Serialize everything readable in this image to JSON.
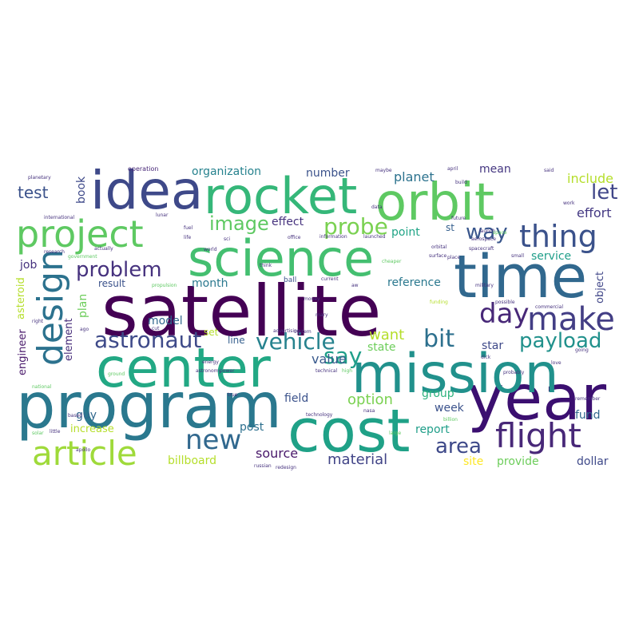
{
  "cloud": {
    "words": [
      {
        "text": "satellite",
        "color": "#440154"
      },
      {
        "text": "year",
        "color": "#3b0f70"
      },
      {
        "text": "program",
        "color": "#2a788e"
      },
      {
        "text": "mission",
        "color": "#21918c"
      },
      {
        "text": "center",
        "color": "#22a884"
      },
      {
        "text": "science",
        "color": "#44bf70"
      },
      {
        "text": "time",
        "color": "#31688e"
      },
      {
        "text": "cost",
        "color": "#1fa187"
      },
      {
        "text": "orbit",
        "color": "#5ec962"
      },
      {
        "text": "rocket",
        "color": "#35b779"
      },
      {
        "text": "idea",
        "color": "#3e4989"
      },
      {
        "text": "project",
        "color": "#5ec962"
      },
      {
        "text": "article",
        "color": "#9fda3a"
      },
      {
        "text": "flight",
        "color": "#482878"
      },
      {
        "text": "design",
        "color": "#2c728e"
      },
      {
        "text": "make",
        "color": "#433e85"
      },
      {
        "text": "thing",
        "color": "#3b528b"
      },
      {
        "text": "day",
        "color": "#482878"
      },
      {
        "text": "new",
        "color": "#31688e"
      },
      {
        "text": "vehicle",
        "color": "#26828e"
      },
      {
        "text": "astronaut",
        "color": "#3e4a89"
      },
      {
        "text": "bit",
        "color": "#2d708e"
      },
      {
        "text": "payload",
        "color": "#21918c"
      },
      {
        "text": "problem",
        "color": "#46327e"
      },
      {
        "text": "probe",
        "color": "#7ad151"
      },
      {
        "text": "area",
        "color": "#3e4989"
      },
      {
        "text": "say",
        "color": "#1f9e89"
      },
      {
        "text": "image",
        "color": "#5ec962"
      },
      {
        "text": "let",
        "color": "#404688"
      },
      {
        "text": "test",
        "color": "#3b528b"
      },
      {
        "text": "way",
        "color": "#39568c"
      },
      {
        "text": "material",
        "color": "#414487"
      },
      {
        "text": "source",
        "color": "#48186a"
      },
      {
        "text": "want",
        "color": "#b5de2b"
      },
      {
        "text": "option",
        "color": "#7ad151"
      },
      {
        "text": "effort",
        "color": "#443983"
      },
      {
        "text": "planet",
        "color": "#2c728e"
      },
      {
        "text": "organization",
        "color": "#26828e"
      },
      {
        "text": "number",
        "color": "#3b528b"
      },
      {
        "text": "mean",
        "color": "#453781"
      },
      {
        "text": "include",
        "color": "#b5de2b"
      },
      {
        "text": "service",
        "color": "#1f9e89"
      },
      {
        "text": "reference",
        "color": "#2a788e"
      },
      {
        "text": "value",
        "color": "#38598c"
      },
      {
        "text": "state",
        "color": "#6ccd5a"
      },
      {
        "text": "star",
        "color": "#3e4989"
      },
      {
        "text": "group",
        "color": "#2db27d"
      },
      {
        "text": "week",
        "color": "#3b528b"
      },
      {
        "text": "report",
        "color": "#1f9e89"
      },
      {
        "text": "fund",
        "color": "#31688e"
      },
      {
        "text": "site",
        "color": "#fde725"
      },
      {
        "text": "provide",
        "color": "#6ccd5a"
      },
      {
        "text": "dollar",
        "color": "#3e4989"
      },
      {
        "text": "billboard",
        "color": "#b5de2b"
      },
      {
        "text": "post",
        "color": "#2d708e"
      },
      {
        "text": "field",
        "color": "#3b528b"
      },
      {
        "text": "month",
        "color": "#2a788e"
      },
      {
        "text": "model",
        "color": "#31688e"
      },
      {
        "text": "plan",
        "color": "#6ccd5a"
      },
      {
        "text": "result",
        "color": "#3b528b"
      },
      {
        "text": "job",
        "color": "#46327e"
      },
      {
        "text": "guy",
        "color": "#31688e"
      },
      {
        "text": "increase",
        "color": "#b5de2b"
      },
      {
        "text": "effect",
        "color": "#46327e"
      },
      {
        "text": "point",
        "color": "#20a486"
      },
      {
        "text": "line",
        "color": "#355f8d"
      },
      {
        "text": "set",
        "color": "#b5de2b"
      },
      {
        "text": "element",
        "color": "#472c7a"
      },
      {
        "text": "engineer",
        "color": "#48186a"
      },
      {
        "text": "asteroid",
        "color": "#b5de2b"
      },
      {
        "text": "object",
        "color": "#404688"
      },
      {
        "text": "book",
        "color": "#3e4989"
      },
      {
        "text": "operation",
        "color": "#482878"
      },
      {
        "text": "st",
        "color": "#355f8d"
      },
      {
        "text": "ball",
        "color": "#3b528b"
      },
      {
        "text": "information",
        "color": "#46327e"
      },
      {
        "text": "launched",
        "color": "#46327e"
      },
      {
        "text": "international",
        "color": "#46327e"
      },
      {
        "text": "research",
        "color": "#46327e"
      },
      {
        "text": "government",
        "color": "#5ec962"
      },
      {
        "text": "actually",
        "color": "#46327e"
      },
      {
        "text": "spacecraft",
        "color": "#46327e"
      },
      {
        "text": "cheaper",
        "color": "#5ec962"
      },
      {
        "text": "propulsion",
        "color": "#5ec962"
      },
      {
        "text": "military",
        "color": "#46327e"
      },
      {
        "text": "commercial",
        "color": "#46327e"
      },
      {
        "text": "possible",
        "color": "#46327e"
      },
      {
        "text": "funding",
        "color": "#b5de2b"
      },
      {
        "text": "advertising",
        "color": "#46327e"
      },
      {
        "text": "energy",
        "color": "#46327e"
      },
      {
        "text": "astronomy",
        "color": "#46327e"
      },
      {
        "text": "power",
        "color": "#46327e"
      },
      {
        "text": "technical",
        "color": "#46327e"
      },
      {
        "text": "high",
        "color": "#5ec962"
      },
      {
        "text": "technology",
        "color": "#46327e"
      },
      {
        "text": "russian",
        "color": "#46327e"
      },
      {
        "text": "redesign",
        "color": "#46327e"
      },
      {
        "text": "aw",
        "color": "#46327e"
      },
      {
        "text": "lunar",
        "color": "#46327e"
      },
      {
        "text": "planetary",
        "color": "#46327e"
      },
      {
        "text": "system",
        "color": "#46327e"
      },
      {
        "text": "world",
        "color": "#46327e"
      },
      {
        "text": "money",
        "color": "#46327e"
      },
      {
        "text": "current",
        "color": "#46327e"
      },
      {
        "text": "office",
        "color": "#46327e"
      },
      {
        "text": "solar",
        "color": "#5ec962"
      },
      {
        "text": "launch",
        "color": "#46327e"
      },
      {
        "text": "future",
        "color": "#46327e"
      },
      {
        "text": "aerospace",
        "color": "#46327e"
      },
      {
        "text": "small",
        "color": "#46327e"
      },
      {
        "text": "place",
        "color": "#46327e"
      },
      {
        "text": "said",
        "color": "#46327e"
      },
      {
        "text": "april",
        "color": "#46327e"
      },
      {
        "text": "build",
        "color": "#46327e"
      },
      {
        "text": "work",
        "color": "#46327e"
      },
      {
        "text": "remember",
        "color": "#46327e"
      },
      {
        "text": "going",
        "color": "#46327e"
      },
      {
        "text": "billion",
        "color": "#5ec962"
      },
      {
        "text": "ground",
        "color": "#5ec962"
      },
      {
        "text": "apollo",
        "color": "#46327e"
      },
      {
        "text": "national",
        "color": "#5ec962"
      },
      {
        "text": "cut",
        "color": "#46327e"
      },
      {
        "text": "exploration",
        "color": "#5ec962"
      },
      {
        "text": "fuel",
        "color": "#46327e"
      },
      {
        "text": "life",
        "color": "#46327e"
      },
      {
        "text": "sci",
        "color": "#46327e"
      },
      {
        "text": "think",
        "color": "#46327e"
      },
      {
        "text": "data",
        "color": "#46327e"
      },
      {
        "text": "maybe",
        "color": "#46327e"
      },
      {
        "text": "orbital",
        "color": "#46327e"
      },
      {
        "text": "surface",
        "color": "#46327e"
      },
      {
        "text": "scientific",
        "color": "#5ec962"
      },
      {
        "text": "space",
        "color": "#5ec962"
      },
      {
        "text": "pub",
        "color": "#46327e"
      },
      {
        "text": "launches",
        "color": "#46327e"
      },
      {
        "text": "real",
        "color": "#46327e"
      },
      {
        "text": "info",
        "color": "#46327e"
      },
      {
        "text": "lot",
        "color": "#46327e"
      },
      {
        "text": "really",
        "color": "#46327e"
      },
      {
        "text": "right",
        "color": "#46327e"
      },
      {
        "text": "ago",
        "color": "#46327e"
      },
      {
        "text": "true",
        "color": "#46327e"
      },
      {
        "text": "large",
        "color": "#5ec962"
      },
      {
        "text": "know",
        "color": "#46327e"
      },
      {
        "text": "little",
        "color": "#46327e"
      },
      {
        "text": "mary",
        "color": "#46327e"
      },
      {
        "text": "aw",
        "color": "#46327e"
      },
      {
        "text": "fly",
        "color": "#46327e"
      },
      {
        "text": "available",
        "color": "#46327e"
      },
      {
        "text": "dick",
        "color": "#46327e"
      },
      {
        "text": "love",
        "color": "#46327e"
      },
      {
        "text": "probably",
        "color": "#46327e"
      },
      {
        "text": "uk",
        "color": "#46327e"
      },
      {
        "text": "aaes board",
        "color": "#46327e"
      },
      {
        "text": "nasa",
        "color": "#46327e"
      },
      {
        "text": "violation",
        "color": "#46327e"
      },
      {
        "text": "based",
        "color": "#46327e"
      },
      {
        "text": "base",
        "color": "#46327e"
      },
      {
        "text": "air",
        "color": "#46327e"
      },
      {
        "text": "old",
        "color": "#46327e"
      },
      {
        "text": "better",
        "color": "#46327e"
      },
      {
        "text": "gov",
        "color": "#46327e"
      },
      {
        "text": "jpl",
        "color": "#46327e"
      },
      {
        "text": "alien",
        "color": "#46327e"
      },
      {
        "text": "zoo",
        "color": "#46327e"
      },
      {
        "text": "need",
        "color": "#5ec962"
      },
      {
        "text": "fact",
        "color": "#46327e"
      }
    ]
  }
}
